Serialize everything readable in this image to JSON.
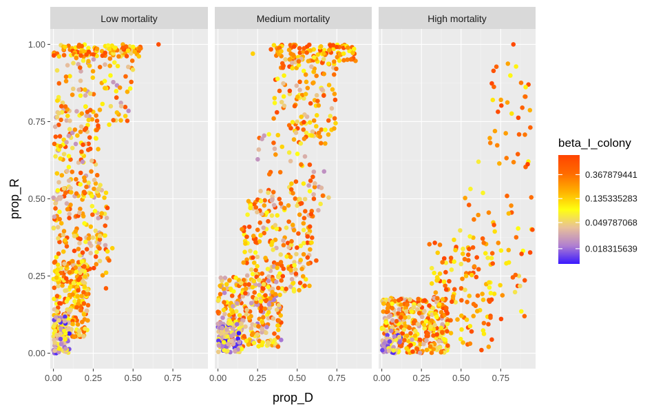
{
  "chart_data": {
    "type": "scatter",
    "xlabel": "prop_D",
    "ylabel": "prop_R",
    "xlim": [
      -0.02,
      0.97
    ],
    "ylim": [
      -0.05,
      1.05
    ],
    "x_ticks": [
      0,
      0.25,
      0.5,
      0.75
    ],
    "x_tick_labels": [
      "0.00",
      "0.25",
      "0.50",
      "0.75"
    ],
    "y_ticks": [
      0,
      0.25,
      0.5,
      0.75,
      1.0
    ],
    "y_tick_labels": [
      "0.00",
      "0.25",
      "0.50",
      "0.75",
      "1.00"
    ],
    "grid": true,
    "facets": [
      {
        "label": "Low mortality",
        "clusters": [
          {
            "x": [
              0.0,
              0.55
            ],
            "y": [
              0.96,
              1.0
            ],
            "n": 110,
            "c": [
              0.35,
              1.0
            ]
          },
          {
            "x": [
              0.02,
              0.5
            ],
            "y": [
              0.75,
              0.97
            ],
            "n": 90,
            "c": [
              0.2,
              0.95
            ]
          },
          {
            "x": [
              0.0,
              0.3
            ],
            "y": [
              0.5,
              0.8
            ],
            "n": 110,
            "c": [
              0.2,
              1.0
            ]
          },
          {
            "x": [
              0.0,
              0.35
            ],
            "y": [
              0.25,
              0.55
            ],
            "n": 150,
            "c": [
              0.25,
              1.0
            ]
          },
          {
            "x": [
              0.0,
              0.22
            ],
            "y": [
              0.05,
              0.3
            ],
            "n": 230,
            "c": [
              0.3,
              1.0
            ]
          },
          {
            "x": [
              0.0,
              0.1
            ],
            "y": [
              0.0,
              0.12
            ],
            "n": 80,
            "c": [
              0.0,
              0.55
            ]
          }
        ],
        "points": [
          {
            "x": 0.66,
            "y": 1.0,
            "c": 0.95
          },
          {
            "x": 0.37,
            "y": 0.34,
            "c": 0.6
          },
          {
            "x": 0.33,
            "y": 0.21,
            "c": 0.9
          },
          {
            "x": 0.35,
            "y": 0.74,
            "c": 0.55
          }
        ]
      },
      {
        "label": "Medium mortality",
        "clusters": [
          {
            "x": [
              0.33,
              0.87
            ],
            "y": [
              0.94,
              1.0
            ],
            "n": 100,
            "c": [
              0.5,
              1.0
            ]
          },
          {
            "x": [
              0.35,
              0.75
            ],
            "y": [
              0.7,
              0.96
            ],
            "n": 120,
            "c": [
              0.3,
              1.0
            ]
          },
          {
            "x": [
              0.25,
              0.7
            ],
            "y": [
              0.45,
              0.72
            ],
            "n": 70,
            "c": [
              0.2,
              0.95
            ]
          },
          {
            "x": [
              0.15,
              0.6
            ],
            "y": [
              0.2,
              0.5
            ],
            "n": 190,
            "c": [
              0.25,
              1.0
            ]
          },
          {
            "x": [
              0.0,
              0.4
            ],
            "y": [
              0.02,
              0.25
            ],
            "n": 280,
            "c": [
              0.15,
              1.0
            ]
          },
          {
            "x": [
              0.0,
              0.15
            ],
            "y": [
              0.0,
              0.1
            ],
            "n": 90,
            "c": [
              0.0,
              0.5
            ]
          }
        ],
        "points": [
          {
            "x": 0.22,
            "y": 0.97,
            "c": 0.6
          },
          {
            "x": 0.65,
            "y": 0.68,
            "c": 0.8
          },
          {
            "x": 0.58,
            "y": 0.41,
            "c": 0.95
          },
          {
            "x": 0.62,
            "y": 0.3,
            "c": 0.9
          }
        ]
      },
      {
        "label": "High mortality",
        "clusters": [
          {
            "x": [
              0.68,
              0.95
            ],
            "y": [
              0.6,
              0.95
            ],
            "n": 35,
            "c": [
              0.5,
              1.0
            ]
          },
          {
            "x": [
              0.45,
              0.95
            ],
            "y": [
              0.1,
              0.55
            ],
            "n": 60,
            "c": [
              0.4,
              1.0
            ]
          },
          {
            "x": [
              0.3,
              0.7
            ],
            "y": [
              0.0,
              0.38
            ],
            "n": 110,
            "c": [
              0.45,
              1.0
            ]
          },
          {
            "x": [
              0.0,
              0.42
            ],
            "y": [
              0.0,
              0.18
            ],
            "n": 330,
            "c": [
              0.25,
              1.0
            ]
          },
          {
            "x": [
              0.0,
              0.12
            ],
            "y": [
              0.0,
              0.08
            ],
            "n": 40,
            "c": [
              0.0,
              0.5
            ]
          }
        ],
        "points": [
          {
            "x": 0.83,
            "y": 1.0,
            "c": 0.98
          },
          {
            "x": 0.61,
            "y": 0.62,
            "c": 0.45
          },
          {
            "x": 0.7,
            "y": 0.82,
            "c": 0.55
          },
          {
            "x": 0.9,
            "y": 0.12,
            "c": 0.85
          },
          {
            "x": 0.95,
            "y": 0.4,
            "c": 0.95
          },
          {
            "x": 0.55,
            "y": 0.48,
            "c": 0.9
          }
        ]
      }
    ],
    "legend": {
      "title": "beta_I_colony",
      "placement": "right",
      "labels": [
        "0.367879441",
        "0.135335283",
        "0.049787068",
        "0.018315639"
      ],
      "label_positions": [
        0.82,
        0.6,
        0.38,
        0.14
      ],
      "gradient_colors": [
        "#3a18ff",
        "#b07fd0",
        "#e8c09a",
        "#ffff10",
        "#ffb000",
        "#ff6a00",
        "#ff4400"
      ]
    }
  }
}
